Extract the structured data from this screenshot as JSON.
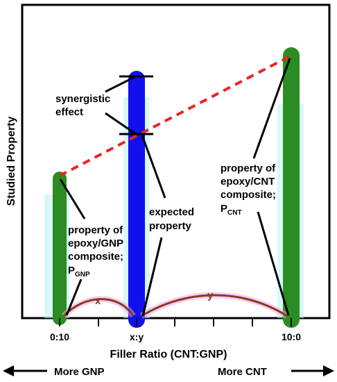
{
  "axes": {
    "x_title": "Filler Ratio (CNT:GNP)",
    "y_title": "Studied Property",
    "ticks": [
      "0:10",
      "x:y",
      "10:0"
    ]
  },
  "direction": {
    "left": "More GNP",
    "right": "More CNT"
  },
  "annotations": {
    "synergy": [
      "synergistic",
      "effect"
    ],
    "expected": [
      "expected",
      "property"
    ],
    "gnp": {
      "lines": [
        "property of",
        "epoxy/GNP",
        "composite;"
      ],
      "symbol": "P",
      "subscript": "GNP"
    },
    "cnt": {
      "lines": [
        "property of",
        "epoxy/CNT",
        "composite;"
      ],
      "symbol": "P",
      "subscript": "CNT"
    }
  },
  "arcs": {
    "x_label": "x",
    "y_label": "y"
  },
  "colors": {
    "gnp_bar": "#2a8c22",
    "mix_bar": "#1010ee",
    "cnt_bar": "#2a8c22",
    "dashed_line": "#ee2222",
    "arc": "#8b3a1a",
    "arc_glow": "#f0a0f0",
    "bar_glow": "#b8f4f0"
  }
}
